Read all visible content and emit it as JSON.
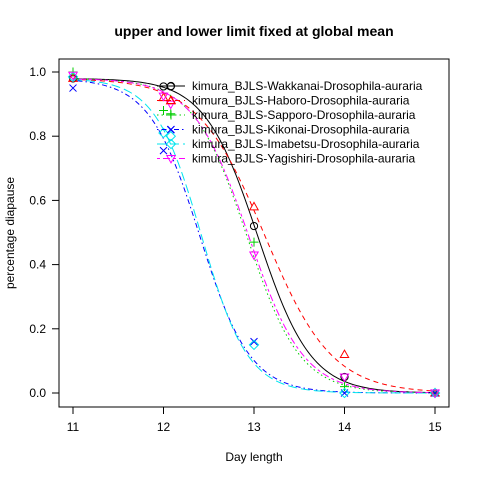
{
  "chart_data": {
    "type": "scatter",
    "title": "upper and lower limit fixed at global mean",
    "xlabel": "Day length",
    "ylabel": "percentage diapause",
    "xlim": [
      11,
      15
    ],
    "ylim": [
      0,
      1
    ],
    "x_ticks": [
      "11",
      "12",
      "13",
      "14",
      "15"
    ],
    "y_ticks": [
      "0.0",
      "0.2",
      "0.4",
      "0.6",
      "0.8",
      "1.0"
    ],
    "legend_position": "top-right",
    "series": [
      {
        "name": "kimura_BJLS-Wakkanai-Drosophila-auraria",
        "color": "#000000",
        "dash": "solid",
        "marker": "circle",
        "points": [
          [
            11,
            0.98
          ],
          [
            12,
            0.955
          ],
          [
            12.08,
            0.955
          ],
          [
            13,
            0.52
          ],
          [
            14,
            0.05
          ],
          [
            15,
            0.0
          ]
        ],
        "curve": {
          "lower": 0.0,
          "upper": 0.98,
          "midpoint": 13.04,
          "slope": 3.4
        }
      },
      {
        "name": "kimura_BJLS-Haboro-Drosophila-auraria",
        "color": "#ff0000",
        "dash": "dashed",
        "marker": "triangle-up",
        "points": [
          [
            11,
            0.98
          ],
          [
            12,
            0.92
          ],
          [
            12.08,
            0.91
          ],
          [
            13,
            0.58
          ],
          [
            14,
            0.12
          ],
          [
            15,
            0.0
          ]
        ],
        "curve": {
          "lower": 0.0,
          "upper": 0.98,
          "midpoint": 13.12,
          "slope": 2.7
        }
      },
      {
        "name": "kimura_BJLS-Sapporo-Drosophila-auraria",
        "color": "#00cd00",
        "dash": "dotted",
        "marker": "plus",
        "points": [
          [
            11,
            1.0
          ],
          [
            12,
            0.88
          ],
          [
            12.08,
            0.87
          ],
          [
            13,
            0.47
          ],
          [
            14,
            0.02
          ],
          [
            15,
            0.0
          ]
        ],
        "curve": {
          "lower": 0.0,
          "upper": 0.98,
          "midpoint": 12.92,
          "slope": 3.4
        }
      },
      {
        "name": "kimura_BJLS-Kikonai-Drosophila-auraria",
        "color": "#0000ff",
        "dash": "dotdash",
        "marker": "cross",
        "points": [
          [
            11,
            0.95
          ],
          [
            12,
            0.755
          ],
          [
            12.08,
            0.82
          ],
          [
            13,
            0.16
          ],
          [
            14,
            0.0
          ],
          [
            15,
            0.0
          ]
        ],
        "curve": {
          "lower": 0.0,
          "upper": 0.98,
          "midpoint": 12.4,
          "slope": 3.6
        }
      },
      {
        "name": "kimura_BJLS-Imabetsu-Drosophila-auraria",
        "color": "#00e5ee",
        "dash": "longdash",
        "marker": "diamond",
        "points": [
          [
            11,
            0.985
          ],
          [
            12,
            0.81
          ],
          [
            12.08,
            0.8
          ],
          [
            13,
            0.15
          ],
          [
            14,
            0.0
          ],
          [
            15,
            0.0
          ]
        ],
        "curve": {
          "lower": 0.0,
          "upper": 0.98,
          "midpoint": 12.42,
          "slope": 3.9
        }
      },
      {
        "name": "kimura_BJLS-Yagishiri-Drosophila-auraria",
        "color": "#ff00ff",
        "dash": "twodash",
        "marker": "triangle-down",
        "points": [
          [
            11,
            0.99
          ],
          [
            12,
            0.925
          ],
          [
            12.08,
            0.9
          ],
          [
            13,
            0.43
          ],
          [
            14,
            0.05
          ],
          [
            15,
            0.0
          ]
        ],
        "curve": {
          "lower": 0.0,
          "upper": 0.98,
          "midpoint": 12.94,
          "slope": 3.3
        }
      }
    ]
  }
}
